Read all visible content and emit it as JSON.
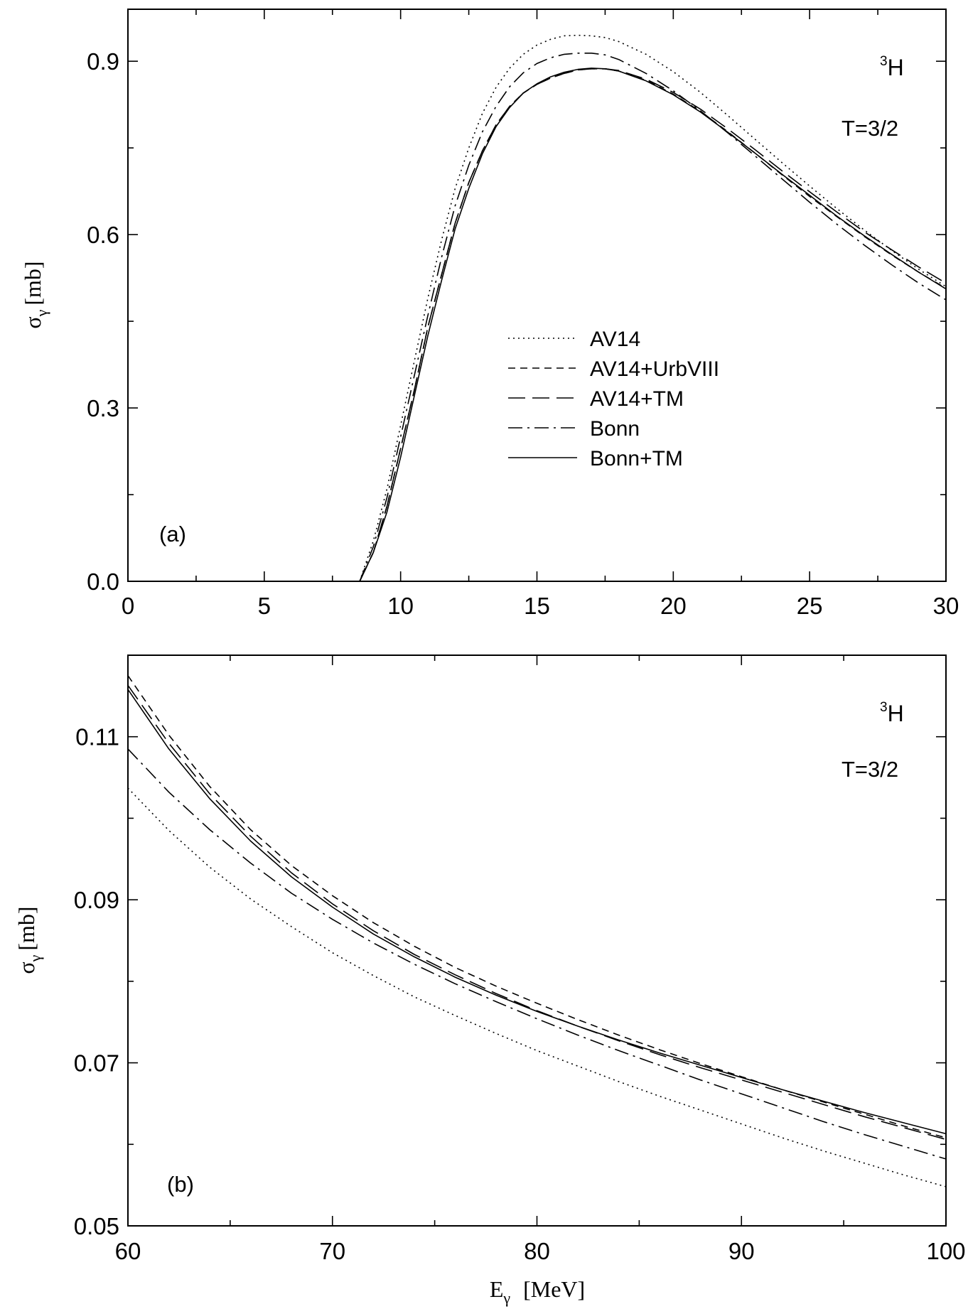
{
  "figure": {
    "xlabel_symbol": "E",
    "xlabel_sub": "γ",
    "xlabel_unit": "[MeV]"
  },
  "chart_data": [
    {
      "type": "line",
      "panel_label": "(a)",
      "nucleus_mass": "3",
      "nucleus_symbol": "H",
      "isospin": "T=3/2",
      "ylabel_symbol": "σ",
      "ylabel_sub": "γ",
      "ylabel_unit": "[mb]",
      "xlim": [
        0,
        30
      ],
      "ylim": [
        0,
        0.99
      ],
      "grid": false,
      "legend_position": "center",
      "xticks": [
        0,
        5,
        10,
        15,
        20,
        25,
        30
      ],
      "xtick_labels": [
        "0",
        "5",
        "10",
        "15",
        "20",
        "25",
        "30"
      ],
      "yticks": [
        0.0,
        0.3,
        0.6,
        0.9
      ],
      "ytick_labels": [
        "0.0",
        "0.3",
        "0.6",
        "0.9"
      ],
      "series": [
        {
          "name": "AV14",
          "dash": "dotted",
          "x": [
            8.5,
            9,
            9.5,
            10,
            10.5,
            11,
            11.5,
            12,
            12.5,
            13,
            13.5,
            14,
            14.5,
            15,
            15.5,
            16,
            16.5,
            17,
            17.5,
            18,
            19,
            20,
            21,
            22,
            23,
            24,
            25,
            26,
            27,
            28,
            29,
            30
          ],
          "y": [
            0.0,
            0.07,
            0.16,
            0.27,
            0.38,
            0.49,
            0.59,
            0.68,
            0.75,
            0.81,
            0.855,
            0.888,
            0.912,
            0.928,
            0.938,
            0.944,
            0.945,
            0.944,
            0.941,
            0.934,
            0.912,
            0.882,
            0.846,
            0.806,
            0.765,
            0.724,
            0.684,
            0.645,
            0.608,
            0.573,
            0.54,
            0.51
          ]
        },
        {
          "name": "AV14+UrbVIII",
          "dash": "short-dash",
          "x": [
            8.5,
            9,
            9.5,
            10,
            10.5,
            11,
            11.5,
            12,
            12.5,
            13,
            13.5,
            14,
            14.5,
            15,
            15.5,
            16,
            16.5,
            17,
            17.5,
            18,
            19,
            20,
            21,
            22,
            23,
            24,
            25,
            26,
            27,
            28,
            29,
            30
          ],
          "y": [
            0.0,
            0.05,
            0.13,
            0.23,
            0.33,
            0.44,
            0.53,
            0.62,
            0.69,
            0.745,
            0.79,
            0.822,
            0.845,
            0.86,
            0.871,
            0.879,
            0.885,
            0.887,
            0.887,
            0.883,
            0.867,
            0.843,
            0.813,
            0.778,
            0.741,
            0.703,
            0.666,
            0.631,
            0.597,
            0.565,
            0.535,
            0.507
          ]
        },
        {
          "name": "AV14+TM",
          "dash": "long-dash",
          "x": [
            8.5,
            9,
            9.5,
            10,
            10.5,
            11,
            11.5,
            12,
            12.5,
            13,
            13.5,
            14,
            14.5,
            15,
            15.5,
            16,
            16.5,
            17,
            17.5,
            18,
            19,
            20,
            21,
            22,
            23,
            24,
            25,
            26,
            27,
            28,
            29,
            30
          ],
          "y": [
            0.0,
            0.05,
            0.13,
            0.23,
            0.33,
            0.44,
            0.53,
            0.62,
            0.69,
            0.745,
            0.79,
            0.822,
            0.845,
            0.86,
            0.871,
            0.879,
            0.885,
            0.887,
            0.887,
            0.884,
            0.869,
            0.846,
            0.817,
            0.783,
            0.747,
            0.71,
            0.674,
            0.639,
            0.605,
            0.574,
            0.544,
            0.516
          ]
        },
        {
          "name": "Bonn",
          "dash": "dash-dot",
          "x": [
            8.5,
            9,
            9.5,
            10,
            10.5,
            11,
            11.5,
            12,
            12.5,
            13,
            13.5,
            14,
            14.5,
            15,
            15.5,
            16,
            16.5,
            17,
            17.5,
            18,
            19,
            20,
            21,
            22,
            23,
            24,
            25,
            26,
            27,
            28,
            29,
            30
          ],
          "y": [
            0.0,
            0.06,
            0.145,
            0.25,
            0.355,
            0.46,
            0.56,
            0.65,
            0.72,
            0.778,
            0.822,
            0.856,
            0.88,
            0.896,
            0.906,
            0.912,
            0.914,
            0.914,
            0.911,
            0.903,
            0.879,
            0.849,
            0.814,
            0.776,
            0.736,
            0.696,
            0.656,
            0.618,
            0.582,
            0.548,
            0.516,
            0.487
          ]
        },
        {
          "name": "Bonn+TM",
          "dash": "solid",
          "x": [
            8.5,
            9,
            9.5,
            10,
            10.5,
            11,
            11.5,
            12,
            12.5,
            13,
            13.5,
            14,
            14.5,
            15,
            15.5,
            16,
            16.5,
            17,
            17.5,
            18,
            19,
            20,
            21,
            22,
            23,
            24,
            25,
            26,
            27,
            28,
            29,
            30
          ],
          "y": [
            0.0,
            0.05,
            0.12,
            0.215,
            0.32,
            0.425,
            0.52,
            0.61,
            0.68,
            0.74,
            0.787,
            0.82,
            0.845,
            0.861,
            0.873,
            0.881,
            0.886,
            0.888,
            0.887,
            0.883,
            0.866,
            0.842,
            0.812,
            0.777,
            0.741,
            0.704,
            0.668,
            0.632,
            0.598,
            0.566,
            0.535,
            0.506
          ]
        }
      ]
    },
    {
      "type": "line",
      "panel_label": "(b)",
      "nucleus_mass": "3",
      "nucleus_symbol": "H",
      "isospin": "T=3/2",
      "ylabel_symbol": "σ",
      "ylabel_sub": "γ",
      "ylabel_unit": "[mb]",
      "xlim": [
        60,
        100
      ],
      "ylim": [
        0.05,
        0.12
      ],
      "grid": false,
      "xticks": [
        60,
        70,
        80,
        90,
        100
      ],
      "xtick_labels": [
        "60",
        "70",
        "80",
        "90",
        "100"
      ],
      "yticks": [
        0.05,
        0.07,
        0.09,
        0.11
      ],
      "ytick_labels": [
        "0.05",
        "0.07",
        "0.09",
        "0.11"
      ],
      "series": [
        {
          "name": "AV14",
          "dash": "dotted",
          "x": [
            60,
            62,
            64,
            66,
            68,
            70,
            72,
            74,
            76,
            78,
            80,
            82,
            84,
            86,
            88,
            90,
            92,
            94,
            96,
            98,
            100
          ],
          "y": [
            0.1037,
            0.0985,
            0.094,
            0.0901,
            0.0867,
            0.0835,
            0.0807,
            0.0781,
            0.0758,
            0.0736,
            0.0715,
            0.0696,
            0.0677,
            0.0659,
            0.0642,
            0.0625,
            0.0608,
            0.0592,
            0.0577,
            0.0562,
            0.0548
          ]
        },
        {
          "name": "AV14+UrbVIII",
          "dash": "short-dash",
          "x": [
            60,
            62,
            64,
            66,
            68,
            70,
            72,
            74,
            76,
            78,
            80,
            82,
            84,
            86,
            88,
            90,
            92,
            94,
            96,
            98,
            100
          ],
          "y": [
            0.1175,
            0.1102,
            0.1039,
            0.0986,
            0.0942,
            0.0905,
            0.0872,
            0.0843,
            0.0817,
            0.0794,
            0.0773,
            0.0753,
            0.0734,
            0.0716,
            0.0699,
            0.0683,
            0.0667,
            0.0652,
            0.0637,
            0.0622,
            0.0608
          ]
        },
        {
          "name": "AV14+TM",
          "dash": "long-dash",
          "x": [
            60,
            62,
            64,
            66,
            68,
            70,
            72,
            74,
            76,
            78,
            80,
            82,
            84,
            86,
            88,
            90,
            92,
            94,
            96,
            98,
            100
          ],
          "y": [
            0.1163,
            0.1092,
            0.103,
            0.0978,
            0.0933,
            0.0895,
            0.0862,
            0.0833,
            0.0808,
            0.0785,
            0.0764,
            0.0745,
            0.0727,
            0.071,
            0.0694,
            0.0679,
            0.0664,
            0.0649,
            0.0634,
            0.062,
            0.0606
          ]
        },
        {
          "name": "Bonn",
          "dash": "dash-dot",
          "x": [
            60,
            62,
            64,
            66,
            68,
            70,
            72,
            74,
            76,
            78,
            80,
            82,
            84,
            86,
            88,
            90,
            92,
            94,
            96,
            98,
            100
          ],
          "y": [
            0.1085,
            0.1032,
            0.0986,
            0.0945,
            0.0908,
            0.0876,
            0.0847,
            0.0821,
            0.0797,
            0.0775,
            0.0754,
            0.0734,
            0.0715,
            0.0697,
            0.0679,
            0.0662,
            0.0645,
            0.0628,
            0.0612,
            0.0597,
            0.0582
          ]
        },
        {
          "name": "Bonn+TM",
          "dash": "solid",
          "x": [
            60,
            62,
            64,
            66,
            68,
            70,
            72,
            74,
            76,
            78,
            80,
            82,
            84,
            86,
            88,
            90,
            92,
            94,
            96,
            98,
            100
          ],
          "y": [
            0.1158,
            0.1085,
            0.1024,
            0.0972,
            0.0928,
            0.0891,
            0.0858,
            0.083,
            0.0805,
            0.0783,
            0.0763,
            0.0745,
            0.0728,
            0.0712,
            0.0697,
            0.0682,
            0.0667,
            0.0653,
            0.0639,
            0.0626,
            0.0613
          ]
        }
      ]
    }
  ]
}
